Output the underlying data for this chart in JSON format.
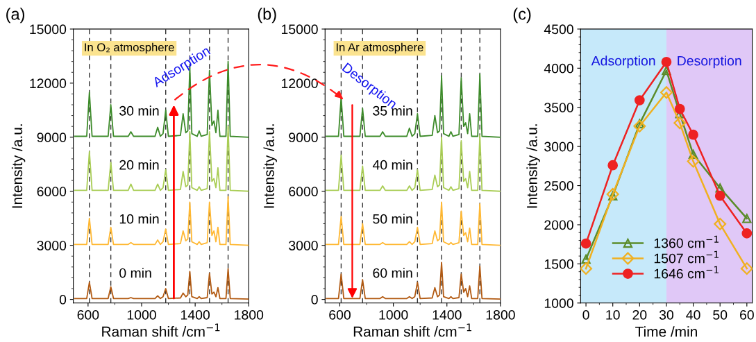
{
  "chart_data": [
    {
      "type": "line",
      "xlabel": "Raman shift /cm$^{−1}$",
      "ylabel": "Intensity /a.u.",
      "annotations": [
        "(a)",
        "In O₂ atmosphere",
        "Adsorption"
      ],
      "x": [
        500,
        590,
        610,
        630,
        750,
        770,
        790,
        900,
        920,
        940,
        1100,
        1120,
        1140,
        1160,
        1180,
        1200,
        1290,
        1310,
        1330,
        1345,
        1360,
        1375,
        1415,
        1430,
        1445,
        1490,
        1507,
        1525,
        1540,
        1555,
        1570,
        1585,
        1630,
        1646,
        1662,
        1800
      ],
      "series": [
        {
          "name": "30 min",
          "color": "#3d8b2a",
          "values": [
            9050,
            9050,
            11500,
            9050,
            9050,
            10800,
            9050,
            9050,
            9300,
            9050,
            9050,
            9550,
            9050,
            9200,
            10500,
            9050,
            9100,
            10300,
            9250,
            9350,
            12900,
            9200,
            9050,
            9350,
            9050,
            9150,
            12700,
            9650,
            9900,
            9250,
            10500,
            9050,
            9050,
            13200,
            9050,
            9000
          ]
        },
        {
          "name": "20 min",
          "color": "#a9cd55",
          "values": [
            6050,
            6050,
            8200,
            6050,
            6050,
            7600,
            6050,
            6050,
            6400,
            6050,
            6050,
            6400,
            6050,
            6200,
            7200,
            6050,
            6100,
            7100,
            6250,
            6350,
            9300,
            6200,
            6050,
            6250,
            6050,
            6150,
            9300,
            6550,
            6700,
            6200,
            7300,
            6050,
            6050,
            9600,
            6050,
            6000
          ]
        },
        {
          "name": "10 min",
          "color": "#ffb833",
          "values": [
            3050,
            3050,
            4500,
            3050,
            3050,
            4000,
            3050,
            3050,
            3150,
            3050,
            3050,
            3300,
            3050,
            3200,
            3900,
            3050,
            3100,
            3800,
            3250,
            3350,
            5400,
            3200,
            3050,
            3200,
            3050,
            3150,
            5400,
            3550,
            3800,
            3200,
            4000,
            3050,
            3050,
            5700,
            3050,
            3000
          ]
        },
        {
          "name": "0 min",
          "color": "#b25a12",
          "values": [
            50,
            50,
            950,
            50,
            50,
            700,
            50,
            50,
            100,
            50,
            50,
            200,
            50,
            150,
            600,
            50,
            80,
            350,
            150,
            250,
            1550,
            150,
            50,
            150,
            50,
            100,
            1450,
            300,
            400,
            150,
            650,
            50,
            50,
            1700,
            50,
            20
          ]
        }
      ],
      "xlim": [
        490,
        1800
      ],
      "xticks": [
        600,
        1000,
        1400,
        1800
      ],
      "ylim": [
        -200,
        15000
      ],
      "yticks": [
        0,
        3000,
        6000,
        9000,
        12000,
        15000
      ],
      "ref_lines": [
        {
          "axis": "x",
          "value": 610,
          "color": "#333333",
          "line_style": "dashed"
        },
        {
          "axis": "x",
          "value": 770,
          "color": "#333333",
          "line_style": "dashed"
        },
        {
          "axis": "x",
          "value": 1180,
          "color": "#333333",
          "line_style": "dashed"
        },
        {
          "axis": "x",
          "value": 1360,
          "color": "#333333",
          "line_style": "dashed"
        },
        {
          "axis": "x",
          "value": 1507,
          "color": "#333333",
          "line_style": "dashed"
        },
        {
          "axis": "x",
          "value": 1646,
          "color": "#333333",
          "line_style": "dashed"
        }
      ],
      "grid": false,
      "legend": false
    },
    {
      "type": "line",
      "xlabel": "Raman shift /cm$^{−1}$",
      "ylabel": "Intensity /a.u.",
      "annotations": [
        "(b)",
        "In Ar atmosphere",
        "Desorption"
      ],
      "x": [
        500,
        590,
        610,
        630,
        750,
        770,
        790,
        900,
        920,
        940,
        1100,
        1120,
        1140,
        1160,
        1180,
        1200,
        1290,
        1310,
        1330,
        1345,
        1360,
        1375,
        1415,
        1430,
        1445,
        1490,
        1507,
        1525,
        1540,
        1555,
        1570,
        1585,
        1630,
        1646,
        1662,
        1800
      ],
      "series": [
        {
          "name": "35 min",
          "color": "#3d8b2a",
          "values": [
            9050,
            9050,
            11200,
            9050,
            9050,
            10600,
            9050,
            9050,
            9300,
            9050,
            9050,
            9500,
            9050,
            9200,
            10300,
            9050,
            9100,
            10200,
            9250,
            9350,
            12400,
            9200,
            9050,
            9300,
            9050,
            9150,
            12300,
            9600,
            9800,
            9200,
            10300,
            9050,
            9050,
            12500,
            9050,
            9000
          ]
        },
        {
          "name": "40 min",
          "color": "#a9cd55",
          "values": [
            6050,
            6050,
            8000,
            6050,
            6050,
            7400,
            6050,
            6050,
            6300,
            6050,
            6050,
            6300,
            6050,
            6200,
            7200,
            6050,
            6100,
            6900,
            6250,
            6350,
            9000,
            6200,
            6050,
            6250,
            6050,
            6150,
            8800,
            6550,
            6700,
            6200,
            7100,
            6050,
            6050,
            9100,
            6050,
            6000
          ]
        },
        {
          "name": "50 min",
          "color": "#ffb833",
          "values": [
            3050,
            3050,
            4600,
            3050,
            3050,
            4200,
            3050,
            3050,
            3150,
            3050,
            3050,
            3200,
            3050,
            3200,
            4000,
            3050,
            3100,
            3800,
            3250,
            3350,
            5400,
            3200,
            3050,
            3150,
            3050,
            3150,
            4900,
            3550,
            3700,
            3200,
            3950,
            3050,
            3050,
            5300,
            3050,
            3000
          ]
        },
        {
          "name": "60 min",
          "color": "#b25a12",
          "values": [
            50,
            50,
            1400,
            50,
            50,
            1100,
            50,
            50,
            150,
            50,
            50,
            150,
            50,
            150,
            950,
            50,
            80,
            650,
            150,
            250,
            2050,
            150,
            50,
            150,
            50,
            100,
            1400,
            400,
            600,
            150,
            750,
            50,
            50,
            1850,
            50,
            20
          ]
        }
      ],
      "xlim": [
        490,
        1800
      ],
      "xticks": [
        600,
        1000,
        1400,
        1800
      ],
      "ylim": [
        -200,
        15000
      ],
      "yticks": [
        0,
        3000,
        6000,
        9000,
        12000,
        15000
      ],
      "ref_lines": [
        {
          "axis": "x",
          "value": 610,
          "color": "#333333",
          "line_style": "dashed"
        },
        {
          "axis": "x",
          "value": 770,
          "color": "#333333",
          "line_style": "dashed"
        },
        {
          "axis": "x",
          "value": 1180,
          "color": "#333333",
          "line_style": "dashed"
        },
        {
          "axis": "x",
          "value": 1360,
          "color": "#333333",
          "line_style": "dashed"
        },
        {
          "axis": "x",
          "value": 1507,
          "color": "#333333",
          "line_style": "dashed"
        },
        {
          "axis": "x",
          "value": 1646,
          "color": "#333333",
          "line_style": "dashed"
        }
      ],
      "grid": false,
      "legend": false
    },
    {
      "type": "line",
      "xlabel": "Time /min",
      "ylabel": "Intensity /a.u.",
      "annotations": [
        "(c)"
      ],
      "x": [
        0,
        10,
        20,
        30,
        35,
        40,
        50,
        60
      ],
      "series": [
        {
          "name": "1360 cm$^{−1}$",
          "color": "#5b8c2a",
          "marker": "triangle",
          "values": [
            1560,
            2370,
            3290,
            3970,
            3420,
            2900,
            2470,
            2080
          ]
        },
        {
          "name": "1507 cm$^{−1}$",
          "color": "#f0b020",
          "marker": "diamond",
          "values": [
            1440,
            2390,
            3260,
            3690,
            3300,
            2810,
            2010,
            1440
          ]
        },
        {
          "name": "1646 cm$^{−1}$",
          "color": "#ee2222",
          "marker": "circle",
          "values": [
            1760,
            2760,
            3590,
            4080,
            3480,
            3150,
            2370,
            1890
          ]
        }
      ],
      "xlim": [
        -2,
        62
      ],
      "xticks": [
        0,
        10,
        20,
        30,
        40,
        50,
        60
      ],
      "ylim": [
        1000,
        4500
      ],
      "yticks": [
        1000,
        1500,
        2000,
        2500,
        3000,
        3500,
        4000,
        4500
      ],
      "bands": [
        {
          "axis": "x",
          "from": -2,
          "to": 30,
          "label": "Adsorption",
          "color": "#c6e9fa"
        },
        {
          "axis": "x",
          "from": 30,
          "to": 62,
          "label": "Desorption",
          "color": "#e0c8f7"
        }
      ],
      "grid": false,
      "legend": "bottom"
    }
  ]
}
